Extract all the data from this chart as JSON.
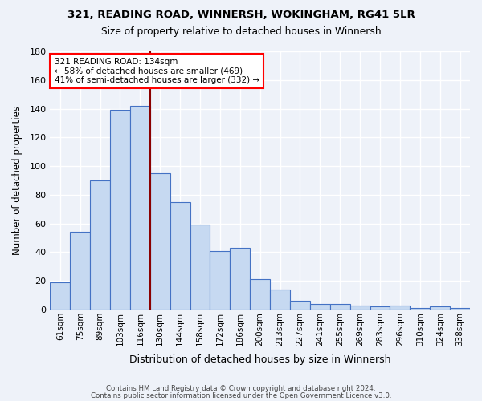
{
  "title1": "321, READING ROAD, WINNERSH, WOKINGHAM, RG41 5LR",
  "title2": "Size of property relative to detached houses in Winnersh",
  "xlabel": "Distribution of detached houses by size in Winnersh",
  "ylabel": "Number of detached properties",
  "categories": [
    "61sqm",
    "75sqm",
    "89sqm",
    "103sqm",
    "116sqm",
    "130sqm",
    "144sqm",
    "158sqm",
    "172sqm",
    "186sqm",
    "200sqm",
    "213sqm",
    "227sqm",
    "241sqm",
    "255sqm",
    "269sqm",
    "283sqm",
    "296sqm",
    "310sqm",
    "324sqm",
    "338sqm"
  ],
  "values": [
    19,
    54,
    90,
    139,
    142,
    95,
    75,
    59,
    41,
    43,
    21,
    14,
    6,
    4,
    4,
    3,
    2,
    3,
    1,
    2,
    1
  ],
  "bar_color": "#c6d9f1",
  "bar_edge_color": "#4472c4",
  "vline_x": 4.5,
  "vline_color": "#8B0000",
  "annotation_line1": "321 READING ROAD: 134sqm",
  "annotation_line2": "← 58% of detached houses are smaller (469)",
  "annotation_line3": "41% of semi-detached houses are larger (332) →",
  "annotation_box_color": "white",
  "annotation_box_edge": "red",
  "ylim": [
    0,
    180
  ],
  "yticks": [
    0,
    20,
    40,
    60,
    80,
    100,
    120,
    140,
    160,
    180
  ],
  "footnote1": "Contains HM Land Registry data © Crown copyright and database right 2024.",
  "footnote2": "Contains public sector information licensed under the Open Government Licence v3.0.",
  "background_color": "#eef2f9",
  "grid_color": "white"
}
